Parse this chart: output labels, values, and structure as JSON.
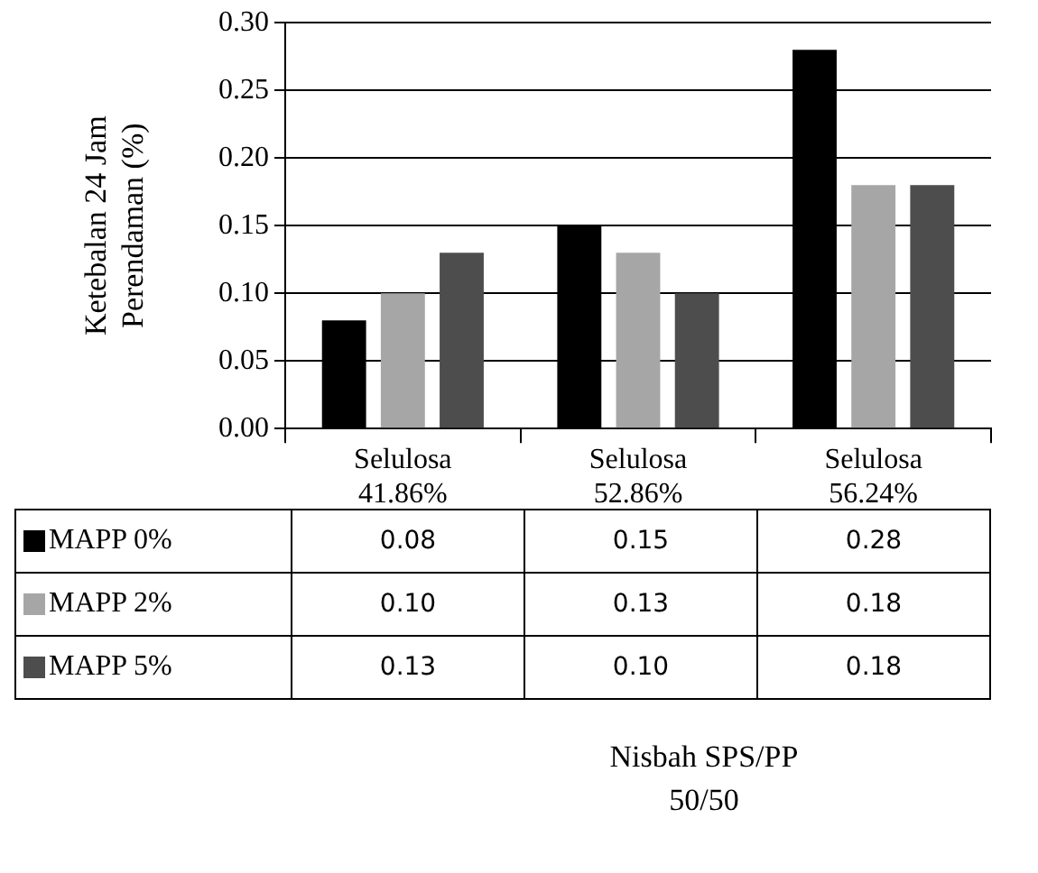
{
  "chart_data": {
    "type": "bar",
    "ylabel": "Ketebalan 24 Jam\nPerendaman (%)",
    "annotations": [
      "Nisbah  SPS/PP\n50/50"
    ],
    "categories": [
      "Selulosa\n41.86%",
      "Selulosa\n52.86%",
      "Selulosa\n56.24%"
    ],
    "series": [
      {
        "name": "MAPP  0%",
        "color": "#000000",
        "values": [
          0.08,
          0.15,
          0.28
        ],
        "value_labels": [
          "0.08",
          "0.15",
          "0.28"
        ]
      },
      {
        "name": "MAPP  2%",
        "color": "#a6a6a6",
        "values": [
          0.1,
          0.13,
          0.18
        ],
        "value_labels": [
          "0.10",
          "0.13",
          "0.18"
        ]
      },
      {
        "name": "MAPP  5%",
        "color": "#4d4d4d",
        "values": [
          0.13,
          0.1,
          0.18
        ],
        "value_labels": [
          "0.13",
          "0.10",
          "0.18"
        ]
      }
    ],
    "ylim": [
      0,
      0.3
    ],
    "yticks": [
      "0.00",
      "0.05",
      "0.10",
      "0.15",
      "0.20",
      "0.25",
      "0.30"
    ],
    "grid": "y",
    "legend": "bottom"
  }
}
